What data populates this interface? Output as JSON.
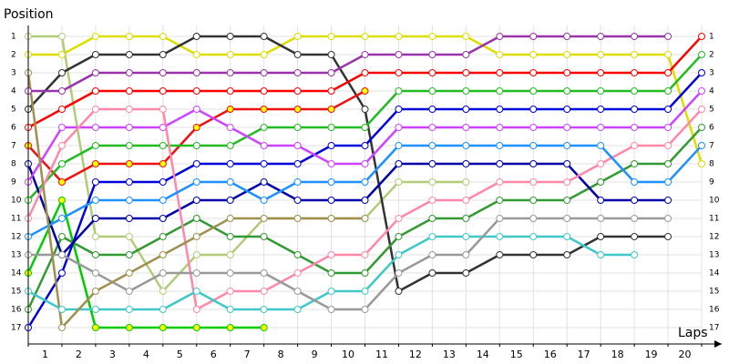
{
  "chart_data": {
    "type": "line",
    "y_label": "Position",
    "x_label": "Laps",
    "categories": [
      "1",
      "2",
      "3",
      "4",
      "5",
      "6",
      "7",
      "8",
      "9",
      "10",
      "11",
      "12",
      "13",
      "14",
      "15",
      "16",
      "17",
      "18",
      "19",
      "20"
    ],
    "x": [
      0,
      1,
      2,
      3,
      4,
      5,
      6,
      7,
      8,
      9,
      10,
      11,
      12,
      13,
      14,
      15,
      16,
      17,
      18,
      19,
      20
    ],
    "xlim": [
      0,
      20
    ],
    "ylim": [
      17.9,
      0.4
    ],
    "yticks": [
      1,
      2,
      3,
      4,
      5,
      6,
      7,
      8,
      9,
      10,
      11,
      12,
      13,
      14,
      15,
      16,
      17
    ],
    "grid": true,
    "series": [
      {
        "color": "#dddd00",
        "values": [
          2,
          2,
          1,
          1,
          1,
          2,
          2,
          2,
          1,
          1,
          1,
          1,
          1,
          1,
          2,
          2,
          2,
          2,
          2,
          2,
          8
        ]
      },
      {
        "color": "#b0cc78",
        "values": [
          1,
          1,
          12,
          12,
          15,
          13,
          13,
          11,
          11,
          11,
          11,
          9,
          9,
          9,
          null,
          null,
          null,
          null,
          null,
          null,
          null
        ]
      },
      {
        "color": "#333333",
        "values": [
          5,
          3,
          2,
          2,
          2,
          1,
          1,
          1,
          2,
          2,
          5,
          15,
          14,
          14,
          13,
          13,
          13,
          12,
          12,
          12,
          null
        ]
      },
      {
        "color": "#9933aa",
        "values": [
          4,
          4,
          3,
          3,
          3,
          3,
          3,
          3,
          3,
          3,
          2,
          2,
          2,
          2,
          1,
          1,
          1,
          1,
          1,
          1,
          null
        ]
      },
      {
        "color": "#ff0000",
        "values": [
          6,
          5,
          4,
          4,
          4,
          4,
          4,
          4,
          4,
          4,
          3,
          3,
          3,
          3,
          3,
          3,
          3,
          3,
          3,
          3,
          1
        ]
      },
      {
        "color": "#ee1111",
        "marker_fill": "#ffff00",
        "values": [
          7,
          9,
          8,
          8,
          8,
          6,
          5,
          5,
          5,
          5,
          4,
          null,
          null,
          null,
          null,
          null,
          null,
          null,
          null,
          null,
          null
        ]
      },
      {
        "color": "#00cc00",
        "marker_fill": "#ffff00",
        "values": [
          14,
          10,
          17,
          17,
          17,
          17,
          17,
          17,
          null,
          null,
          null,
          null,
          null,
          null,
          null,
          null,
          null,
          null,
          null,
          null,
          null
        ]
      },
      {
        "color": "#22bb22",
        "values": [
          10,
          8,
          7,
          7,
          7,
          7,
          7,
          6,
          6,
          6,
          6,
          4,
          4,
          4,
          4,
          4,
          4,
          4,
          4,
          4,
          2
        ]
      },
      {
        "color": "#339933",
        "values": [
          16,
          12,
          13,
          13,
          12,
          11,
          12,
          12,
          13,
          14,
          14,
          12,
          11,
          11,
          10,
          10,
          10,
          9,
          8,
          8,
          6
        ]
      },
      {
        "color": "#0000dd",
        "values": [
          17,
          14,
          9,
          9,
          9,
          8,
          8,
          8,
          8,
          7,
          7,
          5,
          5,
          5,
          5,
          5,
          5,
          5,
          5,
          5,
          3
        ]
      },
      {
        "color": "#0000aa",
        "values": [
          8,
          13,
          11,
          11,
          11,
          10,
          10,
          9,
          10,
          10,
          10,
          8,
          8,
          8,
          8,
          8,
          8,
          10,
          10,
          10,
          null
        ]
      },
      {
        "color": "#cc44ff",
        "values": [
          9,
          6,
          6,
          6,
          6,
          5,
          6,
          7,
          7,
          8,
          8,
          6,
          6,
          6,
          6,
          6,
          6,
          6,
          6,
          6,
          4
        ]
      },
      {
        "color": "#ff88aa",
        "values": [
          11,
          7,
          5,
          5,
          5,
          16,
          15,
          15,
          14,
          13,
          13,
          11,
          10,
          10,
          9,
          9,
          9,
          8,
          7,
          7,
          5
        ]
      },
      {
        "color": "#1e90ff",
        "values": [
          12,
          11,
          10,
          10,
          10,
          9,
          9,
          10,
          9,
          9,
          9,
          7,
          7,
          7,
          7,
          7,
          7,
          7,
          9,
          9,
          7
        ]
      },
      {
        "color": "#40c8c8",
        "values": [
          15,
          16,
          16,
          16,
          16,
          15,
          16,
          16,
          16,
          15,
          15,
          13,
          12,
          12,
          12,
          12,
          12,
          13,
          13,
          null,
          null
        ]
      },
      {
        "color": "#999999",
        "values": [
          13,
          13,
          14,
          15,
          14,
          14,
          14,
          14,
          15,
          16,
          16,
          14,
          13,
          13,
          11,
          11,
          11,
          11,
          11,
          11,
          null
        ]
      },
      {
        "color": "#a09050",
        "values": [
          3,
          17,
          15,
          14,
          13,
          12,
          11,
          11,
          11,
          11,
          11,
          null,
          null,
          null,
          null,
          null,
          null,
          null,
          null,
          null,
          null
        ]
      }
    ]
  }
}
